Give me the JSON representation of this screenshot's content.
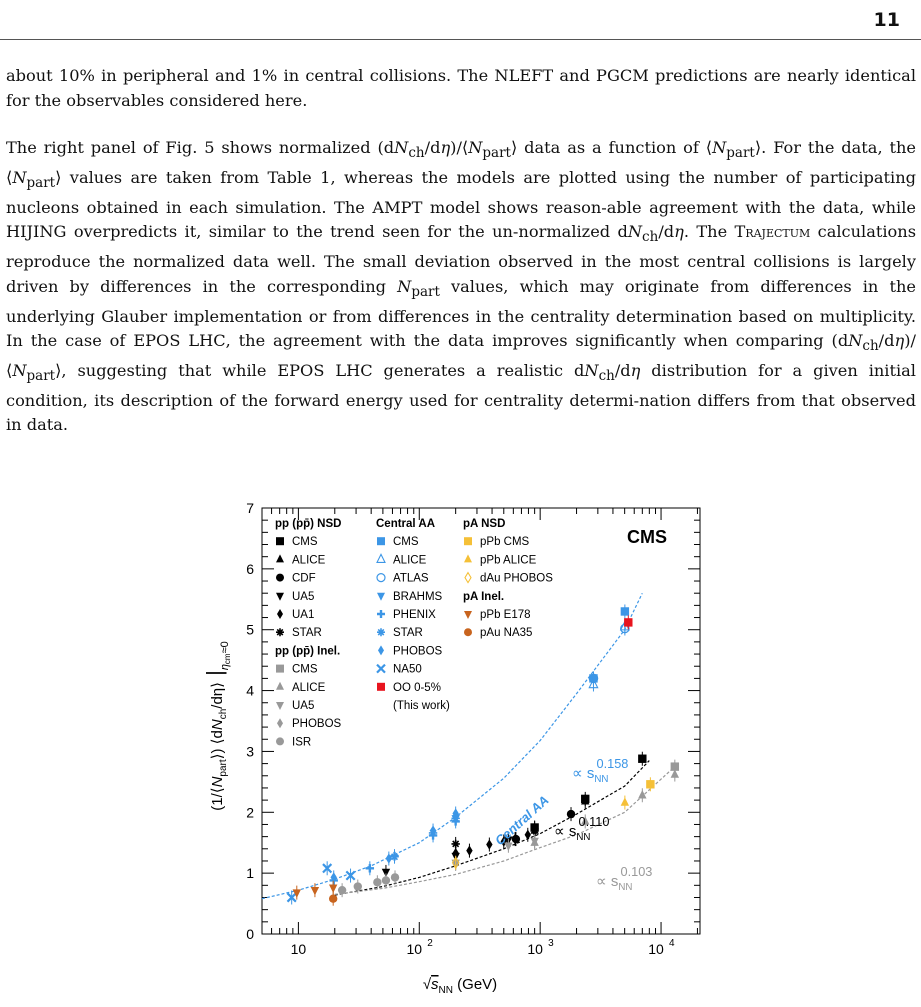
{
  "header": {
    "page_number": "11"
  },
  "paragraphs": {
    "p1": {
      "l1": "about 10% in peripheral and 1% in central collisions. The NLEFT and PGCM predictions are",
      "l2": "nearly identical for the observables considered here."
    },
    "p2": {
      "l1a": "The right panel of Fig. 5 shows normalized (d",
      "l1b": "/d",
      "l1c": ")/⟨",
      "l1d": "⟩ data as a function of ⟨",
      "l1e": "⟩. For",
      "l2a": "the data, the ⟨",
      "l2b": "⟩ values are taken from Table 1, whereas the models are plotted using the",
      "l3": "number of participating nucleons obtained in each simulation. The",
      "l3_model": "AMPT",
      "l3b": "model shows reason-",
      "l4a": "able agreement with the data, while",
      "l4_model": "HIJING",
      "l4b": "overpredicts it, similar to the trend seen for the un-",
      "l5a": "normalized d",
      "l5b": "/d",
      "l5c": ". The",
      "l5_model": "Trajectum",
      "l5d": "calculations reproduce the normalized data well. The",
      "l6": "small deviation observed in the most central collisions is largely driven by differences in the",
      "l7a": "corresponding",
      "l7b": "values, which may originate from differences in the underlying Glauber",
      "l8": "implementation or from differences in the centrality determination based on multiplicity. In",
      "l9a": "the case of",
      "l9_model": "EPOS LHC",
      "l9b": ", the agreement with the data improves significantly when comparing",
      "l10a": "(d",
      "l10b": "/d",
      "l10c": ")/⟨",
      "l10d": "⟩, suggesting that while",
      "l10_model": "EPOS LHC",
      "l10e": "generates a realistic d",
      "l10f": "/d",
      "l10g": "distribution",
      "l11": "for a given initial condition, its description of the forward energy used for centrality determi-",
      "l12": "nation differs from that observed in data."
    },
    "symbols": {
      "N": "N",
      "ch": "ch",
      "part": "part",
      "eta": "η"
    }
  },
  "chart_data": {
    "type": "scatter",
    "xscale": "log",
    "xlim": [
      5,
      21000
    ],
    "ylim": [
      0,
      7
    ],
    "xlabel": "√s_NN (GeV)",
    "xlabel_parts": {
      "root": "√",
      "s": "s",
      "sub": "NN",
      "unit": "(GeV)"
    },
    "ylabel_parts": {
      "a": "(1/⟨",
      "n": "N",
      "sub_part": "part",
      "b": "⟩) ⟨d",
      "n2": "N",
      "sub_ch": "ch",
      "c": "/dη⟩",
      "d": "|",
      "eta": "η",
      "sub_cm": "cm",
      "e": "≈0"
    },
    "x_ticks": [
      {
        "v": 10,
        "label": "10"
      },
      {
        "v": 100,
        "label": "10",
        "sup": "2"
      },
      {
        "v": 1000,
        "label": "10",
        "sup": "3"
      },
      {
        "v": 10000,
        "label": "10",
        "sup": "4"
      }
    ],
    "y_ticks": [
      "0",
      "1",
      "2",
      "3",
      "4",
      "5",
      "6",
      "7"
    ],
    "experiment_label": "CMS",
    "legend_placement": "top-left",
    "legend": {
      "col1_title": "pp (pp̄) NSD",
      "col1": [
        {
          "label": "CMS",
          "marker": "square",
          "color": "#000000"
        },
        {
          "label": "ALICE",
          "marker": "triangle-up",
          "color": "#000000"
        },
        {
          "label": "CDF",
          "marker": "circle",
          "color": "#000000"
        },
        {
          "label": "UA5",
          "marker": "triangle-down",
          "color": "#000000"
        },
        {
          "label": "UA1",
          "marker": "diamond",
          "color": "#000000"
        },
        {
          "label": "STAR",
          "marker": "star",
          "color": "#000000"
        }
      ],
      "col1b_title": "pp (pp̄) Inel.",
      "col1b": [
        {
          "label": "CMS",
          "marker": "square",
          "color": "#999999"
        },
        {
          "label": "ALICE",
          "marker": "triangle-up",
          "color": "#999999"
        },
        {
          "label": "UA5",
          "marker": "triangle-down",
          "color": "#999999"
        },
        {
          "label": "PHOBOS",
          "marker": "diamond",
          "color": "#999999"
        },
        {
          "label": "ISR",
          "marker": "circle",
          "color": "#999999"
        }
      ],
      "col2_title": "Central AA",
      "col2": [
        {
          "label": "CMS",
          "marker": "square",
          "color": "#3c96e6"
        },
        {
          "label": "ALICE",
          "marker": "triangle-up-open",
          "color": "#3c96e6"
        },
        {
          "label": "ATLAS",
          "marker": "circle-open",
          "color": "#3c96e6"
        },
        {
          "label": "BRAHMS",
          "marker": "triangle-down",
          "color": "#3c96e6"
        },
        {
          "label": "PHENIX",
          "marker": "cross",
          "color": "#3c96e6"
        },
        {
          "label": "STAR",
          "marker": "star",
          "color": "#3c96e6"
        },
        {
          "label": "PHOBOS",
          "marker": "diamond",
          "color": "#3c96e6"
        },
        {
          "label": "NA50",
          "marker": "x",
          "color": "#3c96e6"
        },
        {
          "label": "OO 0-5%",
          "marker": "square",
          "color": "#e8141e"
        }
      ],
      "col2_note": "(This work)",
      "col3_title": "pA NSD",
      "col3": [
        {
          "label": "pPb CMS",
          "marker": "square",
          "color": "#f5c037"
        },
        {
          "label": "pPb ALICE",
          "marker": "triangle-up",
          "color": "#f5c037"
        },
        {
          "label": "dAu PHOBOS",
          "marker": "diamond-open",
          "color": "#f5c037"
        }
      ],
      "col3b_title": "pA Inel.",
      "col3b": [
        {
          "label": "pPb E178",
          "marker": "triangle-down",
          "color": "#c8641e"
        },
        {
          "label": "pAu NA35",
          "marker": "circle",
          "color": "#c8641e"
        }
      ]
    },
    "fits": [
      {
        "name": "Central AA",
        "color": "#3c96e6",
        "prefix": "∝ s",
        "sub": "NN",
        "exponent": "0.158",
        "points": [
          [
            5,
            0.58
          ],
          [
            10,
            0.72
          ],
          [
            20,
            0.9
          ],
          [
            40,
            1.12
          ],
          [
            100,
            1.5
          ],
          [
            200,
            1.92
          ],
          [
            500,
            2.56
          ],
          [
            1000,
            3.18
          ],
          [
            2000,
            3.95
          ],
          [
            5000,
            5.0
          ],
          [
            7000,
            5.6
          ]
        ]
      },
      {
        "name": "pp NSD",
        "color": "#000000",
        "prefix": "∝ s",
        "sub": "NN",
        "exponent": "0.110",
        "points": [
          [
            20,
            0.64
          ],
          [
            50,
            0.78
          ],
          [
            100,
            0.93
          ],
          [
            200,
            1.12
          ],
          [
            500,
            1.4
          ],
          [
            1000,
            1.65
          ],
          [
            2000,
            1.97
          ],
          [
            5000,
            2.43
          ],
          [
            8000,
            2.85
          ]
        ]
      },
      {
        "name": "pp Inel.",
        "color": "#999999",
        "prefix": "∝ s",
        "sub": "NN",
        "exponent": "0.103",
        "points": [
          [
            20,
            0.65
          ],
          [
            50,
            0.75
          ],
          [
            100,
            0.86
          ],
          [
            200,
            0.98
          ],
          [
            500,
            1.2
          ],
          [
            1000,
            1.42
          ],
          [
            2000,
            1.63
          ],
          [
            5000,
            2.0
          ],
          [
            13000,
            2.75
          ]
        ]
      }
    ],
    "fit_label_central": "Central AA",
    "series": [
      {
        "name": "pp NSD CMS",
        "marker": "square",
        "color": "#000000",
        "points": [
          [
            900,
            1.75
          ],
          [
            2360,
            2.22
          ],
          [
            7000,
            2.88
          ]
        ]
      },
      {
        "name": "pp NSD ALICE",
        "marker": "triangle-up",
        "color": "#000000",
        "points": [
          [
            900,
            1.7
          ],
          [
            2360,
            2.18
          ]
        ]
      },
      {
        "name": "pp NSD CDF",
        "marker": "circle",
        "color": "#000000",
        "points": [
          [
            630,
            1.56
          ],
          [
            1800,
            1.97
          ]
        ]
      },
      {
        "name": "pp NSD UA5",
        "marker": "triangle-down",
        "color": "#000000",
        "points": [
          [
            53,
            1.02
          ],
          [
            200,
            1.28
          ],
          [
            546,
            1.55
          ],
          [
            900,
            1.68
          ]
        ]
      },
      {
        "name": "pp NSD UA1",
        "marker": "diamond",
        "color": "#000000",
        "points": [
          [
            200,
            1.33
          ],
          [
            260,
            1.37
          ],
          [
            380,
            1.47
          ],
          [
            500,
            1.52
          ],
          [
            620,
            1.56
          ],
          [
            790,
            1.63
          ],
          [
            900,
            1.74
          ]
        ]
      },
      {
        "name": "pp NSD STAR",
        "marker": "star",
        "color": "#000000",
        "points": [
          [
            200,
            1.48
          ]
        ]
      },
      {
        "name": "pp Inel. CMS",
        "marker": "square",
        "color": "#999999",
        "points": [
          [
            13000,
            2.75
          ]
        ]
      },
      {
        "name": "pp Inel. ALICE",
        "marker": "triangle-up",
        "color": "#999999",
        "points": [
          [
            900,
            1.5
          ],
          [
            2360,
            1.85
          ],
          [
            7000,
            2.28
          ],
          [
            13000,
            2.62
          ]
        ]
      },
      {
        "name": "pp Inel. UA5",
        "marker": "triangle-down",
        "color": "#999999",
        "points": [
          [
            200,
            1.17
          ],
          [
            546,
            1.45
          ],
          [
            900,
            1.53
          ]
        ]
      },
      {
        "name": "pp Inel. PHOBOS",
        "marker": "diamond",
        "color": "#999999",
        "points": [
          [
            200,
            1.15
          ]
        ]
      },
      {
        "name": "pp Inel. ISR",
        "marker": "circle",
        "color": "#999999",
        "points": [
          [
            23,
            0.72
          ],
          [
            31,
            0.78
          ],
          [
            45,
            0.85
          ],
          [
            53,
            0.88
          ],
          [
            63,
            0.93
          ]
        ]
      },
      {
        "name": "Central AA CMS",
        "marker": "square",
        "color": "#3c96e6",
        "points": [
          [
            2760,
            4.2
          ],
          [
            5020,
            5.3
          ]
        ]
      },
      {
        "name": "Central AA ALICE",
        "marker": "triangle-up-open",
        "color": "#3c96e6",
        "points": [
          [
            2760,
            4.1
          ],
          [
            5020,
            5.05
          ]
        ]
      },
      {
        "name": "Central AA ATLAS",
        "marker": "circle-open",
        "color": "#3c96e6",
        "points": [
          [
            2760,
            4.2
          ],
          [
            5020,
            5.02
          ]
        ]
      },
      {
        "name": "Central AA BRAHMS",
        "marker": "triangle-down",
        "color": "#3c96e6",
        "points": [
          [
            200,
            1.9
          ]
        ]
      },
      {
        "name": "Central AA PHENIX",
        "marker": "cross",
        "color": "#3c96e6",
        "points": [
          [
            19.6,
            0.88
          ],
          [
            39,
            1.08
          ],
          [
            62.4,
            1.28
          ],
          [
            130,
            1.62
          ],
          [
            200,
            1.85
          ]
        ]
      },
      {
        "name": "Central AA STAR",
        "marker": "star",
        "color": "#3c96e6",
        "points": [
          [
            62.4,
            1.27
          ],
          [
            130,
            1.66
          ],
          [
            200,
            1.9
          ]
        ]
      },
      {
        "name": "Central AA PHOBOS",
        "marker": "diamond",
        "color": "#3c96e6",
        "points": [
          [
            19.6,
            0.93
          ],
          [
            56,
            1.24
          ],
          [
            130,
            1.7
          ],
          [
            200,
            1.98
          ]
        ]
      },
      {
        "name": "Central AA NA50",
        "marker": "x",
        "color": "#3c96e6",
        "points": [
          [
            8.8,
            0.6
          ],
          [
            17.3,
            1.08
          ],
          [
            27,
            0.96
          ]
        ]
      },
      {
        "name": "OO 0-5%",
        "marker": "square",
        "color": "#e8141e",
        "points": [
          [
            5360,
            5.12
          ]
        ]
      },
      {
        "name": "pPb CMS",
        "marker": "square",
        "color": "#f5c037",
        "points": [
          [
            8160,
            2.46
          ]
        ]
      },
      {
        "name": "pPb ALICE",
        "marker": "triangle-up",
        "color": "#f5c037",
        "points": [
          [
            5020,
            2.16
          ]
        ]
      },
      {
        "name": "dAu PHOBOS",
        "marker": "diamond-open",
        "color": "#f5c037",
        "points": [
          [
            200,
            1.17
          ]
        ]
      },
      {
        "name": "pPb E178",
        "marker": "triangle-down",
        "color": "#c8641e",
        "points": [
          [
            9.7,
            0.68
          ],
          [
            13.7,
            0.72
          ],
          [
            19.4,
            0.76
          ]
        ]
      },
      {
        "name": "pAu NA35",
        "marker": "circle",
        "color": "#c8641e",
        "points": [
          [
            19.4,
            0.58
          ]
        ]
      }
    ]
  }
}
